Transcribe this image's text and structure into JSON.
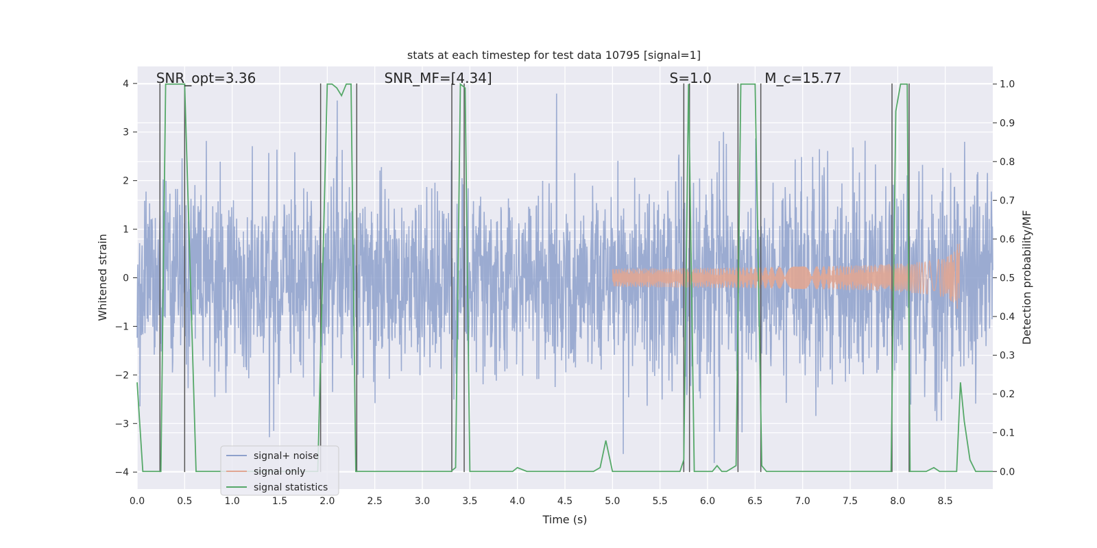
{
  "chart_data": {
    "type": "line",
    "title": "stats at each timestep for test data 10795 [signal=1]",
    "xlabel": "Time (s)",
    "ylabel_left": "Whitened strain",
    "ylabel_right": "Detection probability/MF",
    "xlim": [
      0.0,
      9.0
    ],
    "ylim_left": [
      -4.35,
      4.35
    ],
    "ylim_right": [
      -0.0455,
      1.0455
    ],
    "xticks": [
      "0.0",
      "0.5",
      "1.0",
      "1.5",
      "2.0",
      "2.5",
      "3.0",
      "3.5",
      "4.0",
      "4.5",
      "5.0",
      "5.5",
      "6.0",
      "6.5",
      "7.0",
      "7.5",
      "8.0",
      "8.5"
    ],
    "xtick_values": [
      0.0,
      0.5,
      1.0,
      1.5,
      2.0,
      2.5,
      3.0,
      3.5,
      4.0,
      4.5,
      5.0,
      5.5,
      6.0,
      6.5,
      7.0,
      7.5,
      8.0,
      8.5
    ],
    "yticks_left": [
      "4",
      "3",
      "2",
      "1",
      "0",
      "−1",
      "−2",
      "−3",
      "−4"
    ],
    "ytick_values_left": [
      4,
      3,
      2,
      1,
      0,
      -1,
      -2,
      -3,
      -4
    ],
    "yticks_right": [
      "1.0",
      "0.9",
      "0.8",
      "0.7",
      "0.6",
      "0.5",
      "0.4",
      "0.3",
      "0.2",
      "0.1",
      "0.0"
    ],
    "ytick_values_right": [
      1.0,
      0.9,
      0.8,
      0.7,
      0.6,
      0.5,
      0.4,
      0.3,
      0.2,
      0.1,
      0.0
    ],
    "grid": true,
    "legend_position": "lower-left",
    "annotations": [
      {
        "text": "SNR_opt=3.36",
        "x": 0.2,
        "y": 4.0
      },
      {
        "text": "SNR_MF=[4.34]",
        "x": 2.6,
        "y": 4.0
      },
      {
        "text": "S=1.0",
        "x": 5.6,
        "y": 4.0
      },
      {
        "text": "M_c=15.77",
        "x": 6.6,
        "y": 4.0
      }
    ],
    "vertical_markers": [
      0.24,
      0.5,
      1.93,
      2.31,
      3.31,
      3.44,
      5.75,
      5.81,
      6.32,
      6.56,
      7.94,
      8.12
    ],
    "series": [
      {
        "name": "signal+ noise",
        "color": "#8da0cb",
        "kind": "noise-strain",
        "x_range": [
          0.0,
          9.0
        ],
        "envelope_min": -4.2,
        "envelope_max": 4.0
      },
      {
        "name": "signal only",
        "color": "#e1a692",
        "kind": "chirp",
        "start": 5.0,
        "end": 8.65,
        "peak_amplitude": 0.7
      },
      {
        "name": "signal statistics",
        "color": "#55a868",
        "axis": "right",
        "x": [
          0.0,
          0.06,
          0.25,
          0.3,
          0.5,
          0.62,
          0.7,
          0.9,
          1.85,
          1.9,
          1.95,
          2.0,
          2.05,
          2.1,
          2.15,
          2.2,
          2.25,
          2.3,
          2.33,
          2.45,
          2.5,
          3.3,
          3.35,
          3.4,
          3.45,
          3.5,
          3.95,
          4.0,
          4.05,
          4.1,
          4.15,
          4.8,
          4.87,
          4.93,
          5.0,
          5.71,
          5.75,
          5.8,
          5.86,
          6.0,
          6.05,
          6.1,
          6.15,
          6.2,
          6.3,
          6.35,
          6.4,
          6.5,
          6.57,
          6.62,
          6.7,
          6.8,
          7.0,
          7.5,
          7.93,
          7.98,
          8.03,
          8.1,
          8.13,
          8.2,
          8.3,
          8.38,
          8.44,
          8.5,
          8.62,
          8.66,
          8.7,
          8.76,
          8.82,
          9.0
        ],
        "y": [
          0.23,
          0.0,
          0.0,
          1.0,
          1.0,
          0.0,
          0.0,
          0.0,
          0.0,
          0.0,
          0.5,
          1.0,
          1.0,
          0.99,
          0.97,
          1.0,
          1.0,
          0.0,
          0.0,
          0.0,
          0.0,
          0.0,
          0.01,
          1.0,
          0.99,
          0.0,
          0.0,
          0.01,
          0.005,
          0.0,
          0.0,
          0.0,
          0.01,
          0.08,
          0.0,
          0.0,
          0.03,
          1.0,
          0.0,
          0.0,
          0.0,
          0.015,
          0.0,
          0.0,
          0.015,
          1.0,
          1.0,
          1.0,
          0.015,
          0.0,
          0.0,
          0.0,
          0.0,
          0.0,
          0.0,
          0.93,
          1.0,
          1.0,
          0.0,
          0.0,
          0.0,
          0.01,
          0.0,
          0.0,
          0.0,
          0.23,
          0.13,
          0.03,
          0.0,
          0.0
        ]
      }
    ]
  }
}
